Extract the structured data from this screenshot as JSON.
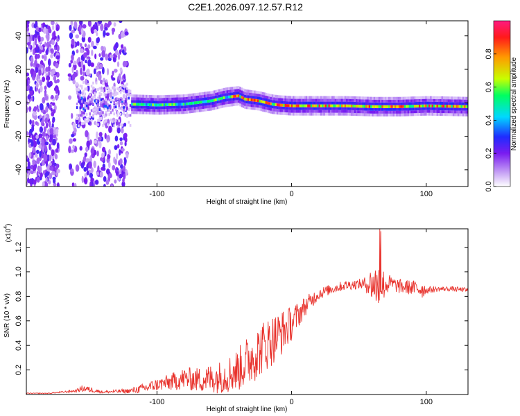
{
  "title": "C2E1.2026.097.12.57.R12",
  "colorbar": {
    "label": "Normalized spectral amplitude",
    "ticks": [
      "0.0",
      "0.2",
      "0.4",
      "0.6",
      "0.8"
    ],
    "tick_values": [
      0.0,
      0.2,
      0.4,
      0.6,
      0.8
    ],
    "colors": [
      "#ffffff",
      "#c9a6f5",
      "#7a1cf0",
      "#1f2cff",
      "#00d8ff",
      "#00ff60",
      "#c8ff00",
      "#ff9a00",
      "#ff1a1a",
      "#ff1a80"
    ]
  },
  "chart_data": [
    {
      "type": "heatmap",
      "xlabel": "Height of straight line (km)",
      "ylabel": "Frequency (Hz)",
      "xlim": [
        -197,
        131
      ],
      "ylim": [
        -50,
        49
      ],
      "x_ticks": [
        -100,
        0,
        100
      ],
      "x_tick_labels": [
        "-100",
        "0",
        "100"
      ],
      "y_ticks": [
        -40,
        -20,
        0,
        20,
        40
      ],
      "y_tick_labels": [
        "-40",
        "-20",
        "0",
        "20",
        "40"
      ],
      "ridge": {
        "x": [
          -120,
          -100,
          -80,
          -60,
          -50,
          -40,
          -35,
          -25,
          -15,
          -10,
          0,
          20,
          40,
          60,
          80,
          100,
          131
        ],
        "freq": [
          -1,
          -1.5,
          -1,
          1,
          3,
          4,
          2,
          1,
          -1,
          -1.5,
          -2,
          -2,
          -2,
          -2.5,
          -2.5,
          -2,
          -2.5
        ]
      },
      "scatter_bands": [
        [
          -197,
          -173
        ],
        [
          -165,
          -122
        ]
      ]
    },
    {
      "type": "line",
      "xlabel": "Height of straight line (km)",
      "ylabel": "SNR (10 * v/v)",
      "scale_label": "(x10",
      "scale_exponent": "4",
      "xlim": [
        -197,
        131
      ],
      "ylim": [
        0,
        1.35
      ],
      "x_ticks": [
        -100,
        0,
        100
      ],
      "x_tick_labels": [
        "-100",
        "0",
        "100"
      ],
      "y_ticks": [
        0.2,
        0.4,
        0.6,
        0.8,
        1.0,
        1.2
      ],
      "y_tick_labels": [
        "0.2",
        "0.4",
        "0.6",
        "0.8",
        "1.0",
        "1.2"
      ],
      "series": [
        {
          "name": "SNR",
          "color": "#e8322c",
          "x": [
            -197,
            -180,
            -160,
            -155,
            -140,
            -120,
            -110,
            -100,
            -90,
            -80,
            -70,
            -60,
            -50,
            -40,
            -30,
            -20,
            -10,
            0,
            10,
            20,
            30,
            40,
            50,
            55,
            60,
            65,
            70,
            75,
            80,
            90,
            97,
            100,
            110,
            120,
            131
          ],
          "y": [
            0.01,
            0.01,
            0.03,
            0.05,
            0.02,
            0.03,
            0.05,
            0.08,
            0.1,
            0.13,
            0.12,
            0.13,
            0.15,
            0.2,
            0.3,
            0.4,
            0.48,
            0.58,
            0.72,
            0.82,
            0.86,
            0.89,
            0.9,
            0.9,
            0.9,
            0.88,
            0.9,
            0.9,
            0.88,
            0.87,
            0.86,
            0.85,
            0.86,
            0.86,
            0.85
          ],
          "noise_amp": [
            0.003,
            0.003,
            0.01,
            0.03,
            0.01,
            0.02,
            0.04,
            0.05,
            0.07,
            0.09,
            0.1,
            0.12,
            0.14,
            0.18,
            0.22,
            0.22,
            0.2,
            0.14,
            0.08,
            0.05,
            0.04,
            0.04,
            0.04,
            0.06,
            0.15,
            0.2,
            0.1,
            0.06,
            0.06,
            0.06,
            0.08,
            0.03,
            0.02,
            0.02,
            0.02
          ]
        }
      ]
    }
  ]
}
